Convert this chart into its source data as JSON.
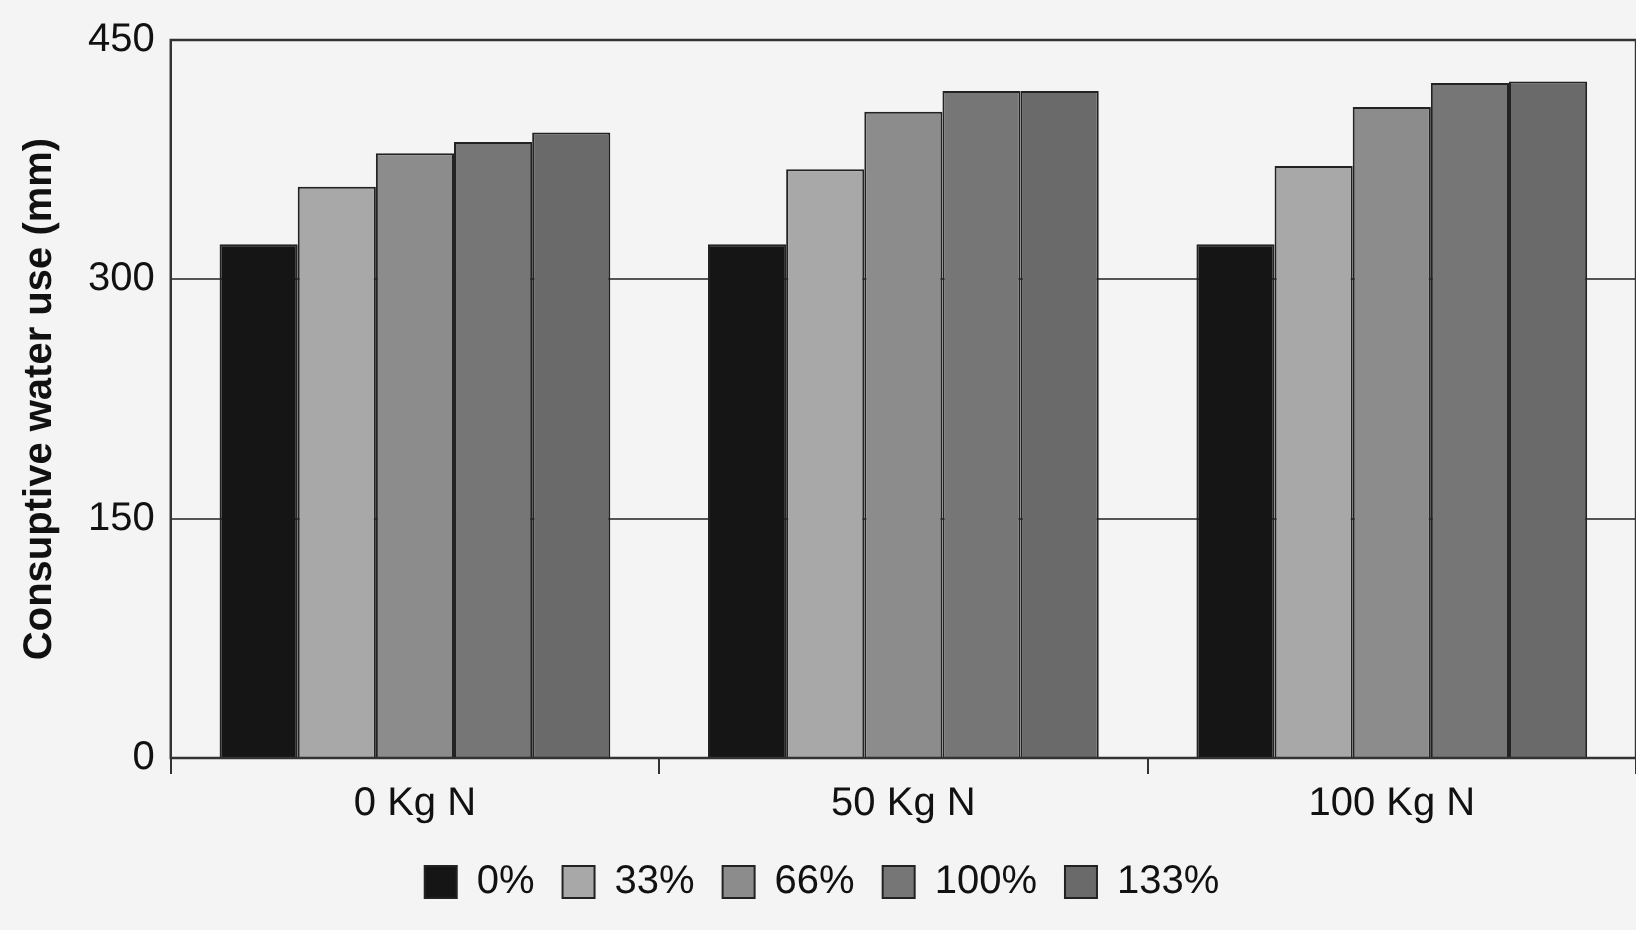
{
  "chart_data": {
    "type": "bar",
    "ylabel": "Consuptive water use (mm)",
    "categories": [
      "0 Kg N",
      "50 Kg N",
      "100 Kg N"
    ],
    "series": [
      {
        "name": "0%",
        "color": "#151515",
        "values": [
          322,
          322,
          322
        ]
      },
      {
        "name": "33%",
        "color": "#a8a8a8",
        "values": [
          358,
          369,
          371
        ]
      },
      {
        "name": "66%",
        "color": "#8c8c8c",
        "values": [
          379,
          405,
          408
        ]
      },
      {
        "name": "100%",
        "color": "#767676",
        "values": [
          386,
          418,
          423
        ]
      },
      {
        "name": "133%",
        "color": "#6a6a6a",
        "values": [
          392,
          418,
          424
        ]
      }
    ],
    "ylim": [
      0,
      450
    ],
    "yticks": [
      0,
      150,
      300,
      450
    ],
    "grid": "y",
    "legend": "bottom"
  }
}
